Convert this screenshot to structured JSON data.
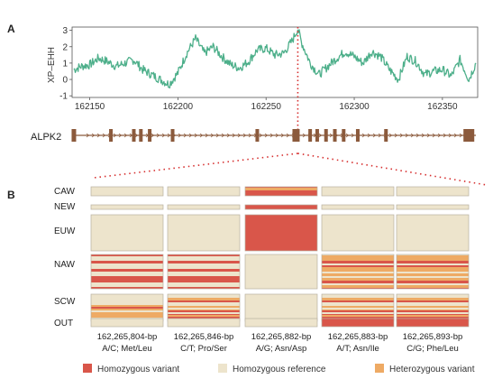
{
  "chart_data": [
    {
      "type": "line",
      "panel_label": "A",
      "ylabel": "XP–EHH",
      "xlim": [
        162140,
        162370
      ],
      "ylim": [
        -1.1,
        3.2
      ],
      "x_ticks": [
        162150,
        162200,
        162250,
        162300,
        162350
      ],
      "y_ticks": [
        -1,
        0,
        1,
        2,
        3
      ],
      "color": "#4daf8a",
      "series": [
        {
          "x": [
            162141,
            162145,
            162150,
            162155,
            162160,
            162165,
            162170,
            162175,
            162180,
            162185,
            162190,
            162195,
            162200,
            162205,
            162210,
            162215,
            162220,
            162225,
            162230,
            162235,
            162240,
            162245,
            162250,
            162255,
            162260,
            162265,
            162268,
            162270,
            162275,
            162280,
            162285,
            162290,
            162295,
            162300,
            162305,
            162310,
            162315,
            162320,
            162325,
            162330,
            162335,
            162340,
            162345,
            162350,
            162355,
            162360,
            162365,
            162369
          ],
          "y": [
            0.6,
            0.8,
            0.9,
            1.3,
            1.1,
            0.8,
            1.0,
            1.2,
            0.6,
            0.3,
            0.0,
            -0.3,
            0.4,
            1.6,
            2.5,
            1.6,
            2.0,
            1.4,
            0.9,
            0.7,
            1.1,
            1.8,
            1.9,
            1.5,
            1.6,
            2.4,
            3.1,
            2.3,
            1.0,
            0.3,
            0.8,
            1.3,
            1.7,
            1.4,
            1.0,
            1.7,
            1.4,
            0.6,
            0.0,
            1.4,
            1.1,
            0.3,
            0.5,
            0.6,
            0.2,
            1.2,
            0.0,
            1.0
          ]
        }
      ]
    },
    {
      "type": "gene_track",
      "gene_name": "ALPK2",
      "color": "#8b5a3c",
      "exons": [
        162141,
        162162,
        162175,
        162179,
        162184,
        162197,
        162245,
        162267,
        162275,
        162279,
        162284,
        162289,
        162294,
        162302,
        162318,
        162365
      ]
    },
    {
      "type": "heatmap",
      "panel_label": "B",
      "rows": [
        "CAW",
        "NEW",
        "EUW",
        "NAW",
        "SCW",
        "OUT"
      ],
      "columns": [
        {
          "line1": "162,265,804-bp",
          "line2": "A/C; Met/Leu"
        },
        {
          "line1": "162,265,846-bp",
          "line2": "C/T; Pro/Ser"
        },
        {
          "line1": "162,265,882-bp",
          "line2": "A/G; Asn/Asp"
        },
        {
          "line1": "162,265,883-bp",
          "line2": "A/T; Asn/Ile"
        },
        {
          "line1": "162,265,893-bp",
          "line2": "C/G; Phe/Leu"
        }
      ],
      "cells": [
        [
          "ref",
          "ref",
          "hom-striped",
          "ref",
          "ref"
        ],
        [
          "ref",
          "ref",
          "hom",
          "ref",
          "ref"
        ],
        [
          "ref",
          "ref",
          "hom",
          "ref",
          "ref"
        ],
        [
          "ref-hom-stripes",
          "ref-hom-stripes",
          "ref",
          "mixed",
          "mixed"
        ],
        [
          "ref-het-stripes",
          "mixed",
          "ref",
          "mixed",
          "mixed"
        ],
        [
          "ref",
          "ref",
          "ref",
          "hom",
          "hom"
        ]
      ],
      "legend": [
        {
          "label": "Homozygous variant",
          "color": "#d9564a"
        },
        {
          "label": "Homozygous reference",
          "color": "#ede4cc"
        },
        {
          "label": "Heterozygous variant",
          "color": "#eeaa64"
        }
      ]
    }
  ]
}
